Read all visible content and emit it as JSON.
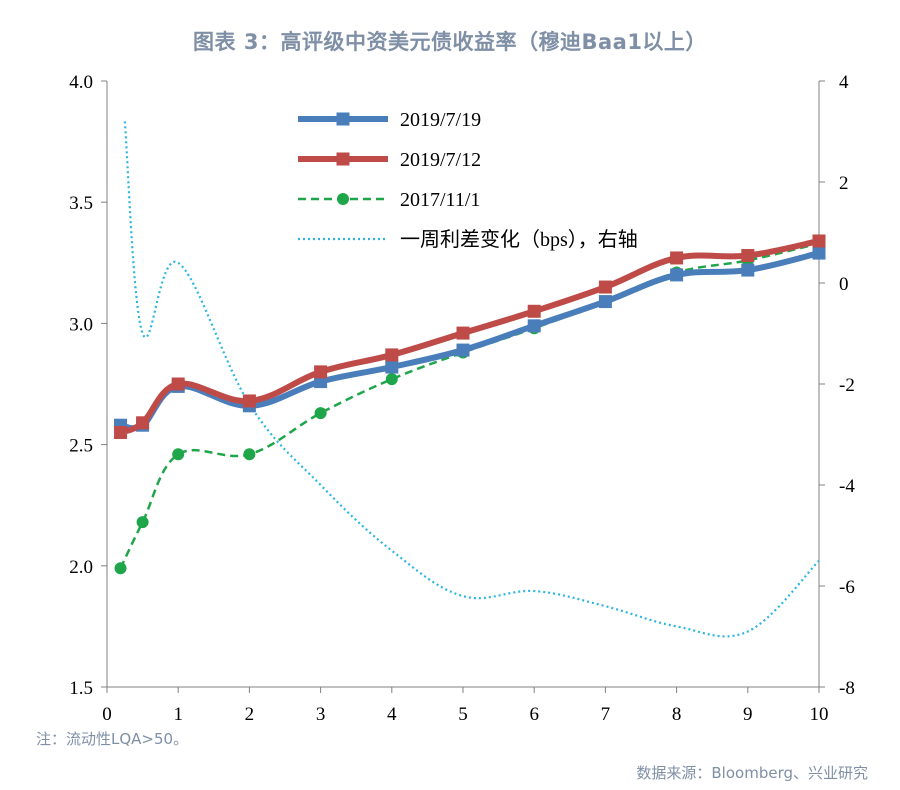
{
  "title": "图表 3：高评级中资美元债收益率（穆迪Baa1以上）",
  "footnote": "注：流动性LQA>50。",
  "source": "数据来源：Bloomberg、兴业研究",
  "colors": {
    "s2019_7_19": "#4a7ebb",
    "s2019_7_12": "#be4b48",
    "s2017_11_1": "#1fa64a",
    "spread": "#2ab6e0"
  },
  "chart_data": {
    "type": "line",
    "title": "图表 3：高评级中资美元债收益率（穆迪Baa1以上）",
    "xlabel": "",
    "ylabel": "",
    "xlim": [
      0,
      10
    ],
    "ylim": [
      1.5,
      4.0
    ],
    "y2lim": [
      -8,
      4
    ],
    "x_ticks": [
      "0",
      "1",
      "2",
      "3",
      "4",
      "5",
      "6",
      "7",
      "8",
      "9",
      "10"
    ],
    "y_ticks": [
      "1.5",
      "2.0",
      "2.5",
      "3.0",
      "3.5",
      "4.0"
    ],
    "y2_ticks": [
      "-8",
      "-6",
      "-4",
      "-2",
      "0",
      "2",
      "4"
    ],
    "grid": false,
    "legend_position": "top-left-center",
    "series": [
      {
        "name": "2019/7/19",
        "axis": "left",
        "style": "solid-thick-square",
        "x": [
          0.19,
          0.5,
          1,
          2,
          3,
          4,
          5,
          6,
          7,
          8,
          9,
          10
        ],
        "y": [
          2.58,
          2.58,
          2.74,
          2.66,
          2.76,
          2.82,
          2.89,
          2.99,
          3.09,
          3.2,
          3.22,
          3.29
        ]
      },
      {
        "name": "2019/7/12",
        "axis": "left",
        "style": "solid-thick-square",
        "x": [
          0.19,
          0.5,
          1,
          2,
          3,
          4,
          5,
          6,
          7,
          8,
          9,
          10
        ],
        "y": [
          2.55,
          2.59,
          2.75,
          2.68,
          2.8,
          2.87,
          2.96,
          3.05,
          3.15,
          3.27,
          3.28,
          3.34
        ]
      },
      {
        "name": "2017/11/1",
        "axis": "left",
        "style": "dashed-circle",
        "x": [
          0.19,
          0.5,
          1,
          2,
          3,
          4,
          5,
          6,
          7,
          8,
          9,
          10
        ],
        "y": [
          1.99,
          2.18,
          2.46,
          2.46,
          2.63,
          2.77,
          2.88,
          2.98,
          3.09,
          3.21,
          3.26,
          3.33
        ]
      },
      {
        "name": "一周利差变化（bps），右轴",
        "axis": "right",
        "style": "dotted",
        "x": [
          0.25,
          0.5,
          1,
          2,
          3,
          4,
          5,
          6,
          7,
          8,
          9,
          10
        ],
        "y": [
          3.2,
          -1.0,
          0.4,
          -2.4,
          -4.0,
          -5.3,
          -6.2,
          -6.1,
          -6.4,
          -6.8,
          -6.9,
          -5.5
        ]
      }
    ]
  }
}
